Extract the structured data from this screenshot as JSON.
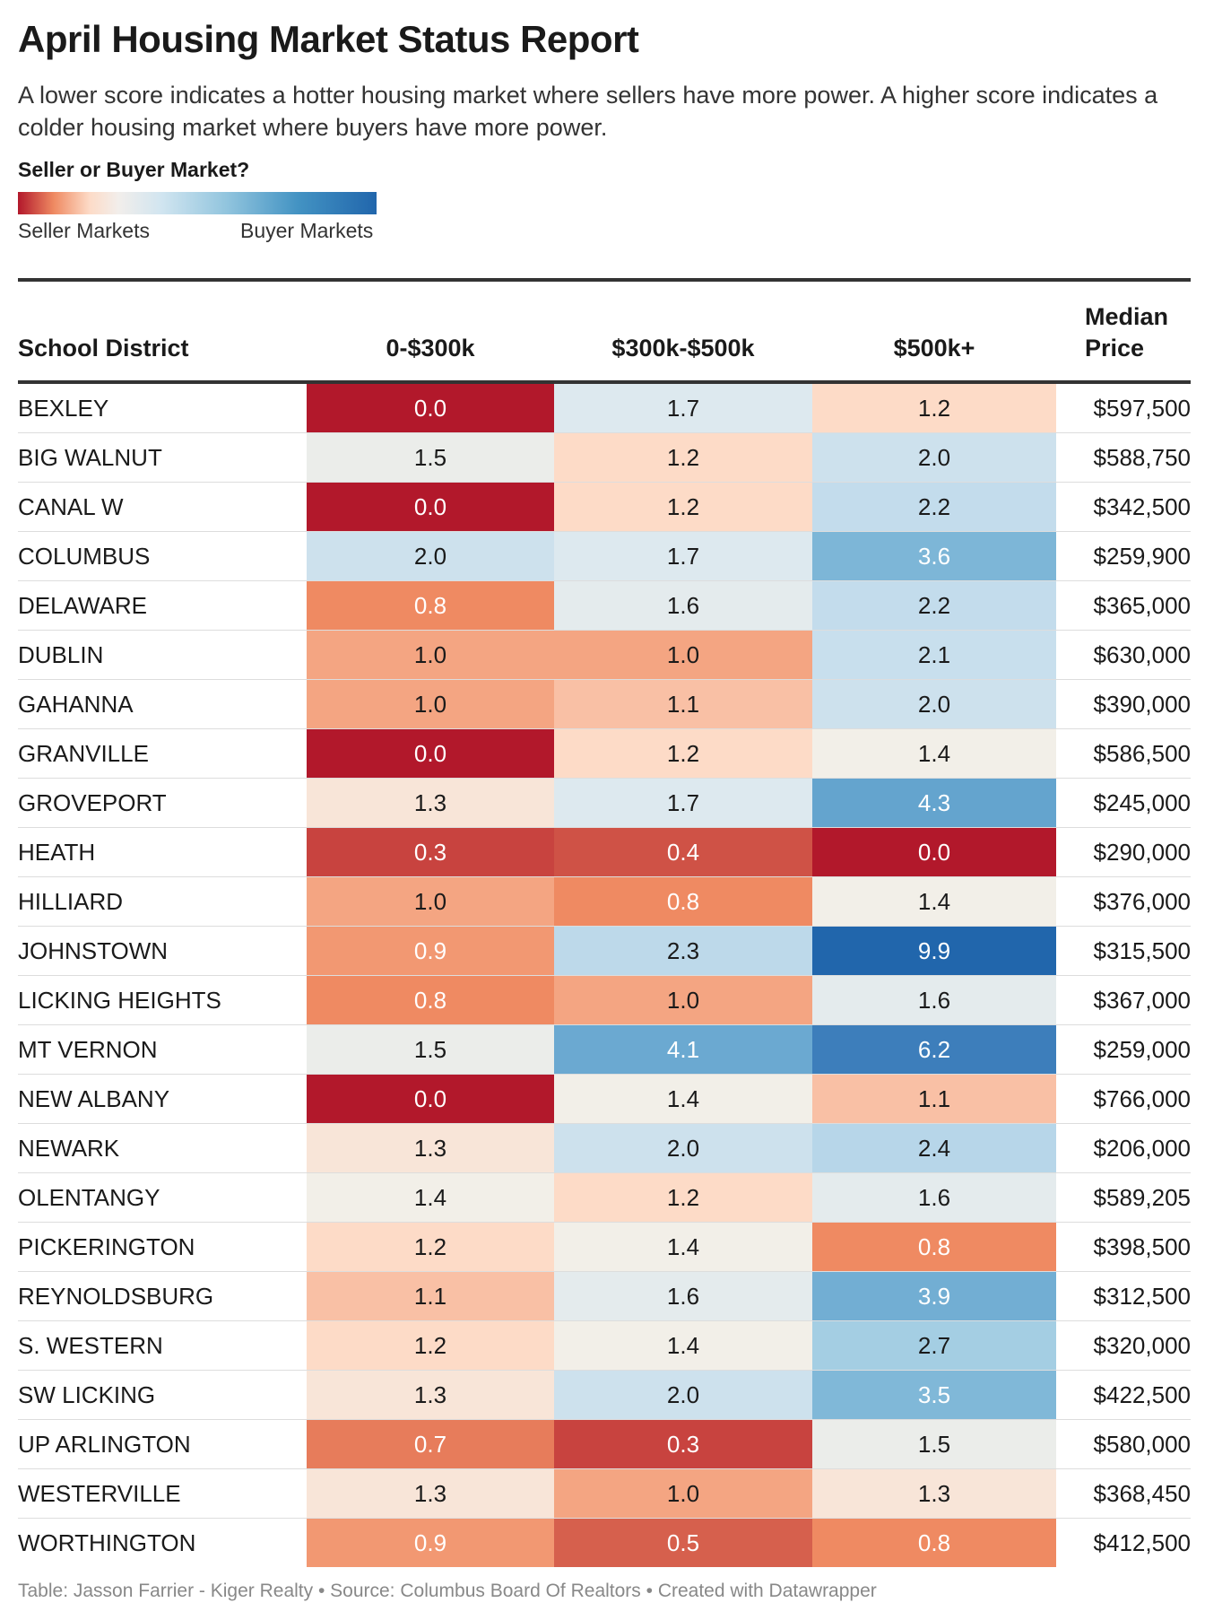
{
  "title": "April Housing Market Status Report",
  "subtitle": "A lower score indicates a hotter housing market where sellers have more power. A higher score indicates a colder housing market where buyers have more power.",
  "legend": {
    "title": "Seller or Buyer Market?",
    "left_label": "Seller Markets",
    "right_label": "Buyer Markets"
  },
  "footer": "Table: Jasson Farrier - Kiger Realty  • Source: Columbus Board Of Realtors  • Created with Datawrapper",
  "chart_data": {
    "type": "table",
    "columns": [
      "School District",
      "0-$300k",
      "$300k-$500k",
      "$500k+",
      "Median Price"
    ],
    "rows": [
      {
        "district": "BEXLEY",
        "v1": 0.0,
        "v2": 1.7,
        "v3": 1.2,
        "price": "$597,500"
      },
      {
        "district": "BIG WALNUT",
        "v1": 1.5,
        "v2": 1.2,
        "v3": 2.0,
        "price": "$588,750"
      },
      {
        "district": "CANAL W",
        "v1": 0.0,
        "v2": 1.2,
        "v3": 2.2,
        "price": "$342,500"
      },
      {
        "district": "COLUMBUS",
        "v1": 2.0,
        "v2": 1.7,
        "v3": 3.6,
        "price": "$259,900"
      },
      {
        "district": "DELAWARE",
        "v1": 0.8,
        "v2": 1.6,
        "v3": 2.2,
        "price": "$365,000"
      },
      {
        "district": "DUBLIN",
        "v1": 1.0,
        "v2": 1.0,
        "v3": 2.1,
        "price": "$630,000"
      },
      {
        "district": "GAHANNA",
        "v1": 1.0,
        "v2": 1.1,
        "v3": 2.0,
        "price": "$390,000"
      },
      {
        "district": "GRANVILLE",
        "v1": 0.0,
        "v2": 1.2,
        "v3": 1.4,
        "price": "$586,500"
      },
      {
        "district": "GROVEPORT",
        "v1": 1.3,
        "v2": 1.7,
        "v3": 4.3,
        "price": "$245,000"
      },
      {
        "district": "HEATH",
        "v1": 0.3,
        "v2": 0.4,
        "v3": 0.0,
        "price": "$290,000"
      },
      {
        "district": "HILLIARD",
        "v1": 1.0,
        "v2": 0.8,
        "v3": 1.4,
        "price": "$376,000"
      },
      {
        "district": "JOHNSTOWN",
        "v1": 0.9,
        "v2": 2.3,
        "v3": 9.9,
        "price": "$315,500"
      },
      {
        "district": "LICKING HEIGHTS",
        "v1": 0.8,
        "v2": 1.0,
        "v3": 1.6,
        "price": "$367,000"
      },
      {
        "district": "MT VERNON",
        "v1": 1.5,
        "v2": 4.1,
        "v3": 6.2,
        "price": "$259,000"
      },
      {
        "district": "NEW ALBANY",
        "v1": 0.0,
        "v2": 1.4,
        "v3": 1.1,
        "price": "$766,000"
      },
      {
        "district": "NEWARK",
        "v1": 1.3,
        "v2": 2.0,
        "v3": 2.4,
        "price": "$206,000"
      },
      {
        "district": "OLENTANGY",
        "v1": 1.4,
        "v2": 1.2,
        "v3": 1.6,
        "price": "$589,205"
      },
      {
        "district": "PICKERINGTON",
        "v1": 1.2,
        "v2": 1.4,
        "v3": 0.8,
        "price": "$398,500"
      },
      {
        "district": "REYNOLDSBURG",
        "v1": 1.1,
        "v2": 1.6,
        "v3": 3.9,
        "price": "$312,500"
      },
      {
        "district": "S. WESTERN",
        "v1": 1.2,
        "v2": 1.4,
        "v3": 2.7,
        "price": "$320,000"
      },
      {
        "district": "SW LICKING",
        "v1": 1.3,
        "v2": 2.0,
        "v3": 3.5,
        "price": "$422,500"
      },
      {
        "district": "UP ARLINGTON",
        "v1": 0.7,
        "v2": 0.3,
        "v3": 1.5,
        "price": "$580,000"
      },
      {
        "district": "WESTERVILLE",
        "v1": 1.3,
        "v2": 1.0,
        "v3": 1.3,
        "price": "$368,450"
      },
      {
        "district": "WORTHINGTON",
        "v1": 0.9,
        "v2": 0.5,
        "v3": 0.8,
        "price": "$412,500"
      }
    ],
    "color_scale": {
      "stops": [
        {
          "value": 0.0,
          "color": "#b2182b"
        },
        {
          "value": 0.5,
          "color": "#d6604d"
        },
        {
          "value": 0.8,
          "color": "#ef8a62"
        },
        {
          "value": 1.0,
          "color": "#f4a582"
        },
        {
          "value": 1.2,
          "color": "#fddbc7"
        },
        {
          "value": 1.4,
          "color": "#f2efe8"
        },
        {
          "value": 1.7,
          "color": "#dde9ef"
        },
        {
          "value": 2.2,
          "color": "#c3dcec"
        },
        {
          "value": 3.0,
          "color": "#92c5de"
        },
        {
          "value": 4.5,
          "color": "#5d9fcc"
        },
        {
          "value": 6.2,
          "color": "#3d7ebb"
        },
        {
          "value": 9.9,
          "color": "#2166ac"
        }
      ]
    }
  }
}
